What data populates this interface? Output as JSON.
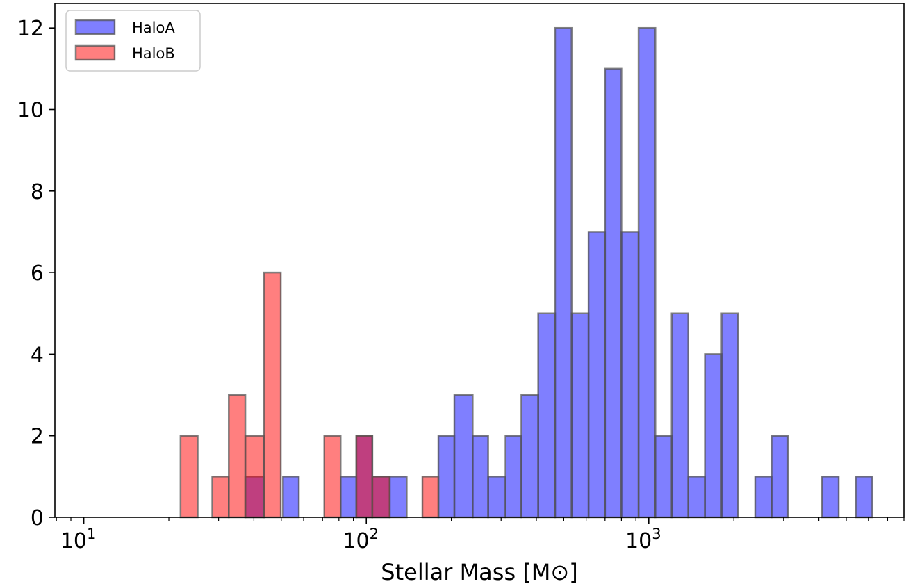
{
  "chart_data": {
    "type": "bar",
    "xlabel": "Stellar Mass [M⊙]",
    "ylabel": "",
    "x_scale": "log",
    "xlim": [
      7.9,
      8000
    ],
    "ylim": [
      0,
      12.6
    ],
    "grid": false,
    "legend_position": "top-left",
    "y_ticks": [
      "0",
      "2",
      "4",
      "6",
      "8",
      "10",
      "12"
    ],
    "x_ticks": [
      {
        "base": "10",
        "exp": "1",
        "value": 10
      },
      {
        "base": "10",
        "exp": "2",
        "value": 100
      },
      {
        "base": "10",
        "exp": "3",
        "value": 1000
      }
    ],
    "series": [
      {
        "name": "HaloA",
        "color": "#0000ff",
        "opacity": 0.5,
        "bins": [
          {
            "x0": 37.3,
            "x1": 43.4,
            "count": 1
          },
          {
            "x0": 50.7,
            "x1": 57.7,
            "count": 1
          },
          {
            "x0": 81.1,
            "x1": 92.2,
            "count": 1
          },
          {
            "x0": 92.2,
            "x1": 105.0,
            "count": 2
          },
          {
            "x0": 105.0,
            "x1": 121.0,
            "count": 1
          },
          {
            "x0": 121.0,
            "x1": 139.0,
            "count": 1
          },
          {
            "x0": 180.0,
            "x1": 205.0,
            "count": 2
          },
          {
            "x0": 205.0,
            "x1": 238.0,
            "count": 3
          },
          {
            "x0": 238.0,
            "x1": 270.0,
            "count": 2
          },
          {
            "x0": 270.0,
            "x1": 311.0,
            "count": 1
          },
          {
            "x0": 311.0,
            "x1": 354.0,
            "count": 2
          },
          {
            "x0": 354.0,
            "x1": 406.0,
            "count": 3
          },
          {
            "x0": 406.0,
            "x1": 466.0,
            "count": 5
          },
          {
            "x0": 466.0,
            "x1": 533.0,
            "count": 12
          },
          {
            "x0": 533.0,
            "x1": 612.0,
            "count": 5
          },
          {
            "x0": 612.0,
            "x1": 700.0,
            "count": 7
          },
          {
            "x0": 700.0,
            "x1": 800.0,
            "count": 11
          },
          {
            "x0": 800.0,
            "x1": 920.0,
            "count": 7
          },
          {
            "x0": 920.0,
            "x1": 1055.0,
            "count": 12
          },
          {
            "x0": 1055.0,
            "x1": 1205.0,
            "count": 2
          },
          {
            "x0": 1205.0,
            "x1": 1380.0,
            "count": 5
          },
          {
            "x0": 1380.0,
            "x1": 1580.0,
            "count": 1
          },
          {
            "x0": 1580.0,
            "x1": 1810.0,
            "count": 4
          },
          {
            "x0": 1810.0,
            "x1": 2070.0,
            "count": 5
          },
          {
            "x0": 2380.0,
            "x1": 2720.0,
            "count": 1
          },
          {
            "x0": 2720.0,
            "x1": 3110.0,
            "count": 2
          },
          {
            "x0": 4100.0,
            "x1": 4700.0,
            "count": 1
          },
          {
            "x0": 5400.0,
            "x1": 6180.0,
            "count": 1
          }
        ]
      },
      {
        "name": "HaloB",
        "color": "#ff0000",
        "opacity": 0.5,
        "bins": [
          {
            "x0": 22.0,
            "x1": 25.3,
            "count": 2
          },
          {
            "x0": 28.5,
            "x1": 32.6,
            "count": 1
          },
          {
            "x0": 32.6,
            "x1": 37.3,
            "count": 3
          },
          {
            "x0": 37.3,
            "x1": 43.4,
            "count": 2
          },
          {
            "x0": 43.4,
            "x1": 49.8,
            "count": 6
          },
          {
            "x0": 71.0,
            "x1": 81.1,
            "count": 2
          },
          {
            "x0": 92.2,
            "x1": 105.0,
            "count": 2
          },
          {
            "x0": 105.0,
            "x1": 121.0,
            "count": 1
          },
          {
            "x0": 158.0,
            "x1": 180.0,
            "count": 1
          }
        ]
      }
    ]
  }
}
